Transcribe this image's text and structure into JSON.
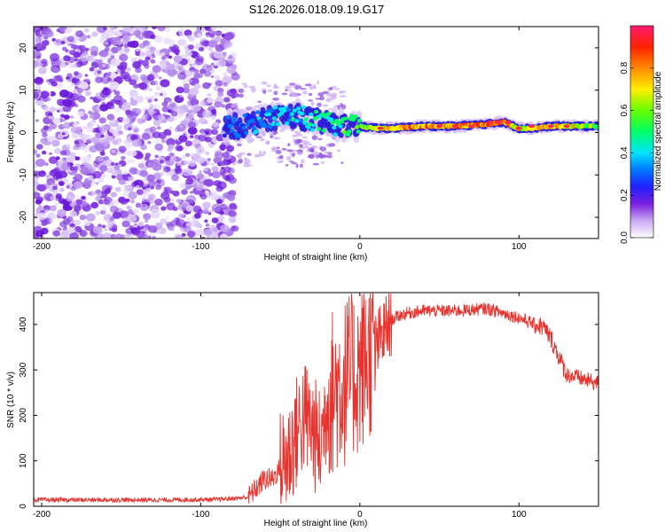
{
  "title": "S126.2026.018.09.19.G17",
  "chart_data": [
    {
      "type": "heatmap",
      "name": "spectrogram",
      "xlabel": "Height of straight line (km)",
      "ylabel": "Frequency (Hz)",
      "xlim": [
        -205,
        150
      ],
      "ylim": [
        -25,
        25
      ],
      "xticks": [
        -200,
        -100,
        0,
        100
      ],
      "yticks": [
        -20,
        -10,
        0,
        10,
        20
      ],
      "colorbar": {
        "label": "Normalized spectral amplitude",
        "range": [
          0,
          1
        ],
        "ticks": [
          "0.0",
          "0.2",
          "0.4",
          "0.6",
          "0.8"
        ],
        "tick_values": [
          0,
          0.2,
          0.4,
          0.6,
          0.8
        ]
      },
      "ridge": {
        "description": "dominant frequency ridge",
        "x": [
          -85,
          -70,
          -60,
          -50,
          -40,
          -30,
          -20,
          -10,
          0,
          10,
          20,
          40,
          60,
          80,
          90,
          100,
          110,
          120,
          140,
          150
        ],
        "freq_hz": [
          1,
          2,
          3,
          4,
          4,
          3,
          2,
          1.5,
          1.5,
          1,
          1,
          1.5,
          1.5,
          2,
          2.5,
          1,
          1,
          1.5,
          1.5,
          1.5
        ],
        "amplitude": [
          0.3,
          0.35,
          0.4,
          0.4,
          0.45,
          0.5,
          0.5,
          0.55,
          0.6,
          0.7,
          0.8,
          0.85,
          0.85,
          0.9,
          0.95,
          0.7,
          0.75,
          0.8,
          0.7,
          0.6
        ]
      },
      "noise_region_x": [
        -205,
        -78
      ]
    },
    {
      "type": "line",
      "name": "snr",
      "xlabel": "Height of straight line (km)",
      "ylabel": "SNR (10 * v/v)",
      "xlim": [
        -205,
        150
      ],
      "ylim": [
        0,
        470
      ],
      "xticks": [
        -200,
        -100,
        0,
        100
      ],
      "yticks": [
        0,
        100,
        200,
        300,
        400
      ],
      "color": "#e8322d",
      "series": [
        {
          "name": "SNR",
          "x": [
            -205,
            -180,
            -150,
            -120,
            -90,
            -80,
            -70,
            -65,
            -60,
            -55,
            -50,
            -45,
            -40,
            -35,
            -30,
            -25,
            -20,
            -15,
            -10,
            -5,
            0,
            5,
            10,
            15,
            20,
            25,
            30,
            40,
            50,
            60,
            70,
            80,
            90,
            100,
            110,
            115,
            120,
            125,
            130,
            140,
            150
          ],
          "y": [
            14,
            14,
            14,
            14,
            15,
            17,
            20,
            40,
            60,
            60,
            85,
            110,
            160,
            200,
            170,
            130,
            240,
            260,
            270,
            290,
            300,
            330,
            350,
            380,
            410,
            420,
            425,
            430,
            430,
            430,
            432,
            435,
            425,
            415,
            400,
            395,
            370,
            330,
            290,
            280,
            270
          ]
        }
      ]
    }
  ]
}
